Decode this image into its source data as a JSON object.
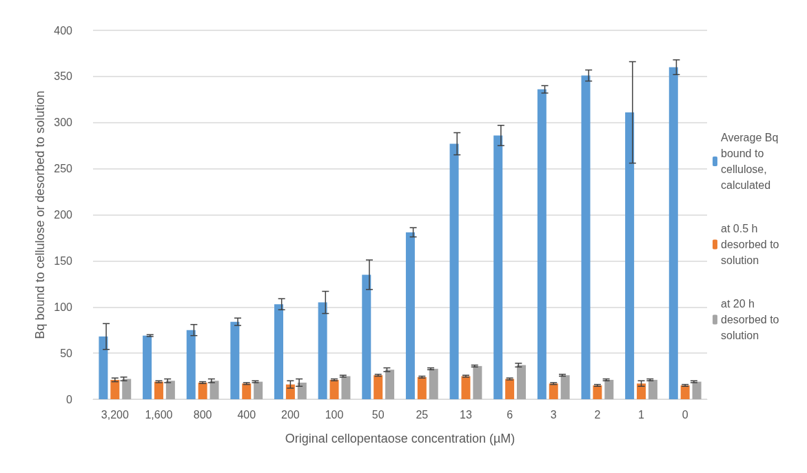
{
  "chart_data": {
    "type": "bar",
    "xlabel": "Original cellopentaose concentration (µM)",
    "ylabel": "Bq bound to cellulose or desorbed to solution",
    "categories": [
      "3,200",
      "1,600",
      "800",
      "400",
      "200",
      "100",
      "50",
      "25",
      "13",
      "6",
      "3",
      "2",
      "1",
      "0"
    ],
    "series": [
      {
        "name": "Average Bq bound to cellulose, calculated",
        "color": "#5b9bd5",
        "values": [
          68,
          69,
          75,
          84,
          103,
          105,
          135,
          181,
          277,
          286,
          336,
          351,
          311,
          360
        ],
        "errors": [
          14,
          1,
          6,
          4,
          6,
          12,
          16,
          5,
          12,
          11,
          4,
          6,
          55,
          8
        ]
      },
      {
        "name": "at 0.5 h desorbed to solution",
        "color": "#ed7d31",
        "values": [
          21,
          19,
          18,
          17,
          16,
          21,
          26,
          24,
          25,
          22,
          17,
          15,
          17,
          15
        ],
        "errors": [
          2,
          1,
          1,
          1,
          4,
          1,
          1,
          1,
          1,
          1,
          1,
          1,
          3,
          1
        ]
      },
      {
        "name": "at 20 h desorbed to solution",
        "color": "#a5a5a5",
        "values": [
          22,
          20,
          20,
          19,
          18,
          25,
          32,
          33,
          36,
          37,
          26,
          21,
          21,
          19
        ],
        "errors": [
          2,
          2,
          2,
          1,
          4,
          1,
          2,
          1,
          1,
          2,
          1,
          1,
          1,
          1
        ]
      }
    ],
    "ylim": [
      0,
      400
    ],
    "yticks": [
      0,
      50,
      100,
      150,
      200,
      250,
      300,
      350,
      400
    ],
    "grid": "y",
    "legend": "right"
  }
}
